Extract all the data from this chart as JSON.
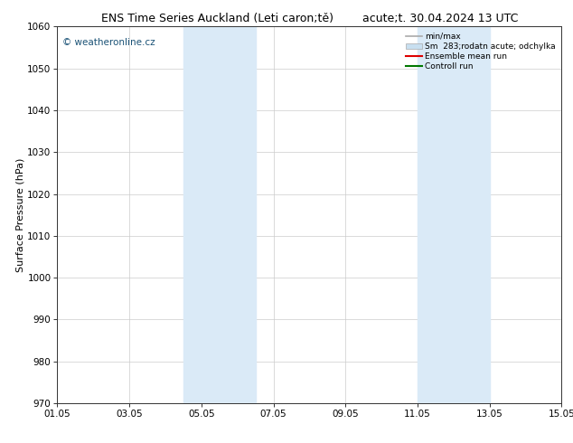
{
  "title": "ENS Time Series Auckland (Leti caron;tě)        acute;t. 30.04.2024 13 UTC",
  "ylabel": "Surface Pressure (hPa)",
  "xlim_num": [
    0,
    14
  ],
  "ylim": [
    970,
    1060
  ],
  "yticks": [
    970,
    980,
    990,
    1000,
    1010,
    1020,
    1030,
    1040,
    1050,
    1060
  ],
  "xtick_labels": [
    "01.05",
    "03.05",
    "05.05",
    "07.05",
    "09.05",
    "11.05",
    "13.05",
    "15.05"
  ],
  "xtick_positions": [
    0,
    2,
    4,
    6,
    8,
    10,
    12,
    14
  ],
  "shaded_regions": [
    {
      "xmin": 3.5,
      "xmax": 5.5,
      "color": "#daeaf7"
    },
    {
      "xmin": 10.0,
      "xmax": 12.0,
      "color": "#daeaf7"
    }
  ],
  "watermark_text": "© weatheronline.cz",
  "watermark_color": "#1a5276",
  "legend_entries": [
    {
      "label": "min/max",
      "color": "#aaaaaa",
      "type": "line",
      "lw": 1.2
    },
    {
      "label": "Sm  283;rodatn acute; odchylka",
      "color": "#c8dff0",
      "type": "bar"
    },
    {
      "label": "Ensemble mean run",
      "color": "#dd0000",
      "type": "line",
      "lw": 1.5
    },
    {
      "label": "Controll run",
      "color": "#007700",
      "type": "line",
      "lw": 1.5
    }
  ],
  "bg_color": "#ffffff",
  "plot_bg_color": "#ffffff",
  "grid_color": "#cccccc",
  "title_fontsize": 9,
  "tick_fontsize": 7.5,
  "ylabel_fontsize": 8,
  "watermark_fontsize": 7.5,
  "legend_fontsize": 6.5
}
